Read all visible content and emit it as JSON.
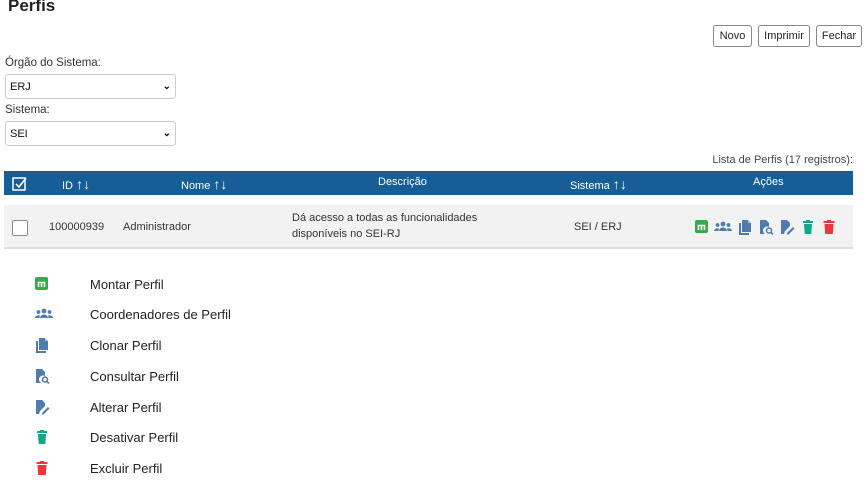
{
  "page": {
    "title": "Perfis"
  },
  "toolbar": {
    "new_label": "Novo",
    "print_label": "Imprimir",
    "close_label": "Fechar"
  },
  "filters": {
    "orgao_label": "Órgão do Sistema:",
    "orgao_value": "ERJ",
    "sistema_label": "Sistema:",
    "sistema_value": "SEI"
  },
  "table": {
    "caption": "Lista de Perfis (17 registros):",
    "headers": {
      "id": "ID",
      "nome": "Nome",
      "descricao": "Descrição",
      "sistema": "Sistema",
      "acoes": "Ações"
    },
    "rows": [
      {
        "id": "100000939",
        "nome": "Administrador",
        "descricao_line1": "Dá acesso a todas as funcionalidades",
        "descricao_line2": "disponíveis no SEI-RJ",
        "sistema": "SEI / ERJ"
      }
    ]
  },
  "legend": [
    {
      "icon": "montar-icon",
      "label": "Montar Perfil"
    },
    {
      "icon": "users-icon",
      "label": "Coordenadores de Perfil"
    },
    {
      "icon": "clone-icon",
      "label": "Clonar Perfil"
    },
    {
      "icon": "search-doc-icon",
      "label": "Consultar Perfil"
    },
    {
      "icon": "edit-doc-icon",
      "label": "Alterar Perfil"
    },
    {
      "icon": "trash-teal-icon",
      "label": "Desativar Perfil"
    },
    {
      "icon": "trash-red-icon",
      "label": "Excluir Perfil"
    }
  ],
  "colors": {
    "header": "#155e96",
    "icon_blue": "#4f7cac",
    "green": "#3aa84a",
    "teal": "#13a88a",
    "red": "#e8383d"
  }
}
